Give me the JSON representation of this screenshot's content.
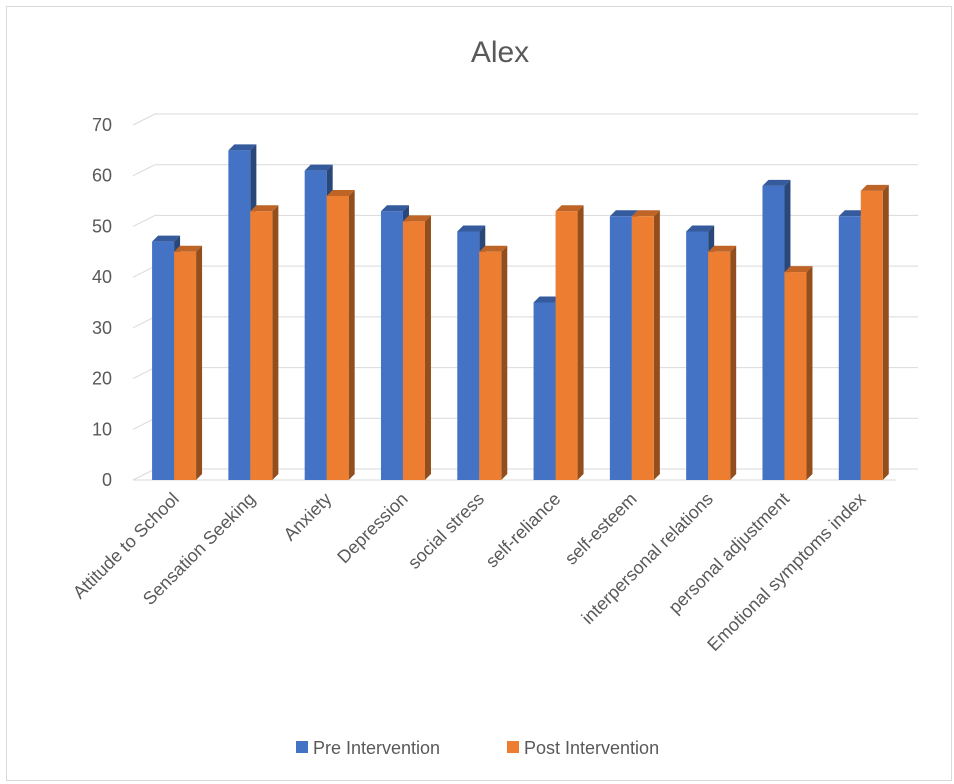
{
  "chart_data": {
    "type": "bar",
    "title": "Alex",
    "categories": [
      "Attitude to School",
      "Sensation Seeking",
      "Anxiety",
      "Depression",
      "social stress",
      "self-reliance",
      "self-esteem",
      "interpersonal relations",
      "personal adjustment",
      "Emotional symptoms index"
    ],
    "series": [
      {
        "name": "Pre Intervention",
        "color": "#4472C4",
        "values": [
          47,
          65,
          61,
          53,
          49,
          35,
          52,
          49,
          58,
          52
        ]
      },
      {
        "name": "Post Intervention",
        "color": "#ED7D31",
        "values": [
          45,
          53,
          56,
          51,
          45,
          53,
          52,
          45,
          41,
          57
        ]
      }
    ],
    "yticks": [
      "0",
      "10",
      "20",
      "30",
      "40",
      "50",
      "60",
      "70"
    ],
    "ylim": [
      0,
      70
    ],
    "grid": true,
    "legend_position": "bottom",
    "style": "3d-column"
  }
}
